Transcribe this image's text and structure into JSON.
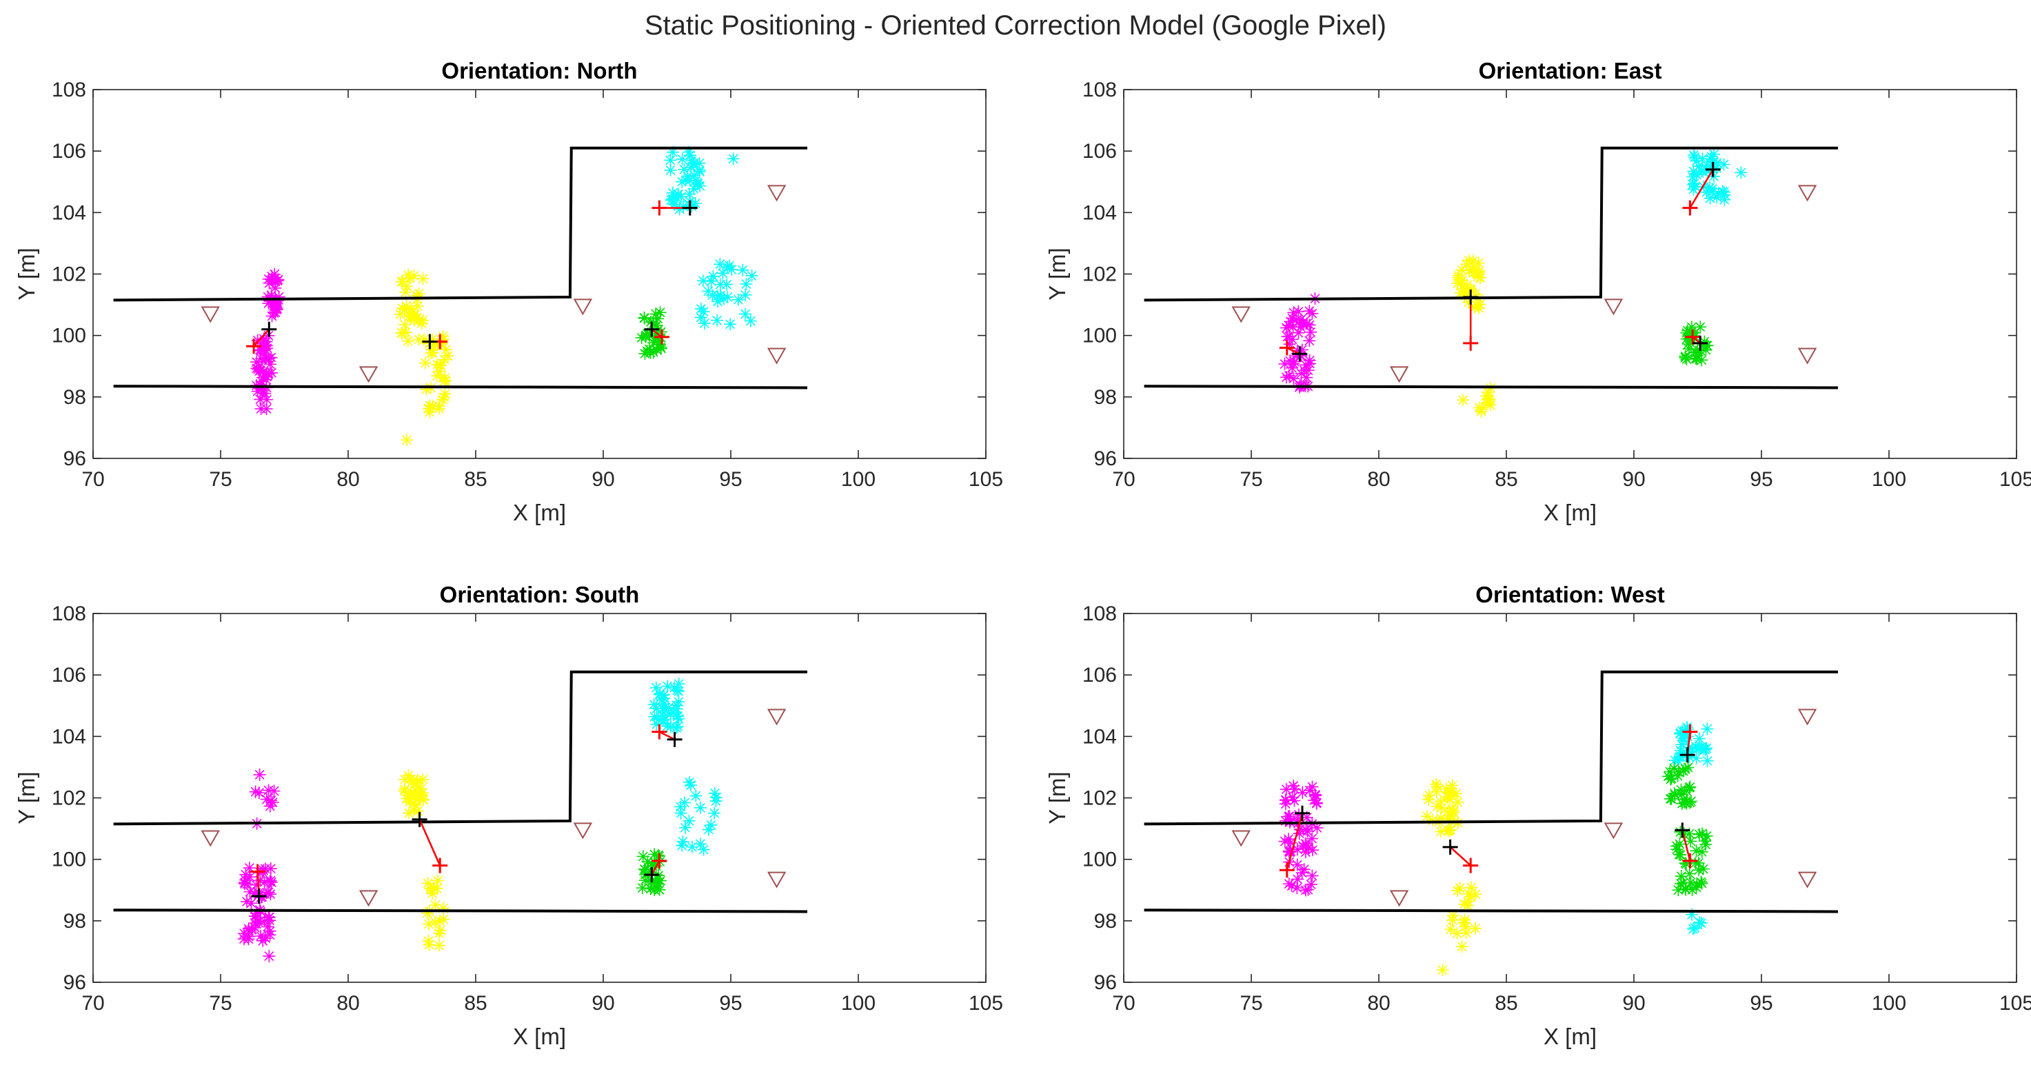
{
  "figure": {
    "title": "Static Positioning - Oriented Correction Model (Google Pixel)"
  },
  "colors": {
    "magenta": "#ff00ff",
    "yellow": "#ffff00",
    "cyan": "#00ffff",
    "green": "#00dd00",
    "estimate": "#000000",
    "truth": "#ff0000",
    "error_line": "#ff0000",
    "anchor": "#a05050",
    "wall": "#000000",
    "axis": "#262626"
  },
  "chart_data": [
    {
      "type": "scatter",
      "title": "Orientation: North",
      "xlabel": "X [m]",
      "ylabel": "Y [m]",
      "xlim": [
        70,
        105
      ],
      "ylim": [
        96,
        108
      ],
      "xticks": [
        70,
        75,
        80,
        85,
        90,
        95,
        100,
        105
      ],
      "yticks": [
        96,
        98,
        100,
        102,
        104,
        106,
        108
      ],
      "xtick_labels": [
        "70",
        "75",
        "80",
        "85",
        "90",
        "95",
        "100",
        "105"
      ],
      "ytick_labels": [
        "96",
        "98",
        "100",
        "102",
        "104",
        "106",
        "108"
      ],
      "walls": [
        [
          [
            70.8,
            101.15
          ],
          [
            88.7,
            101.25
          ],
          [
            88.75,
            106.1
          ],
          [
            98,
            106.1
          ]
        ],
        [
          [
            70.8,
            98.35
          ],
          [
            98,
            98.3
          ]
        ]
      ],
      "anchors": [
        [
          74.6,
          100.7
        ],
        [
          80.8,
          98.75
        ],
        [
          89.2,
          100.95
        ],
        [
          96.8,
          104.65
        ],
        [
          96.8,
          99.35
        ]
      ],
      "clusters": [
        {
          "color": "magenta",
          "x": [
            76.8,
            77.3
          ],
          "y": [
            100.6,
            102.0
          ],
          "n": 30
        },
        {
          "color": "magenta",
          "x": [
            76.4,
            77.0
          ],
          "y": [
            97.6,
            100.0
          ],
          "n": 45
        },
        {
          "color": "yellow",
          "x": [
            82.0,
            83.0
          ],
          "y": [
            99.8,
            102.0
          ],
          "n": 35
        },
        {
          "color": "yellow",
          "x": [
            83.0,
            84.0
          ],
          "y": [
            97.4,
            100.0
          ],
          "n": 35
        },
        {
          "color": "yellow",
          "x": [
            82.3,
            82.3
          ],
          "y": [
            96.6,
            96.6
          ],
          "n": 1
        },
        {
          "color": "cyan",
          "x": [
            92.6,
            93.8
          ],
          "y": [
            104.1,
            106.0
          ],
          "n": 40
        },
        {
          "color": "cyan",
          "x": [
            93.8,
            96.0
          ],
          "y": [
            100.3,
            102.4
          ],
          "n": 30
        },
        {
          "color": "cyan",
          "x": [
            95.1,
            95.1
          ],
          "y": [
            105.75,
            105.75
          ],
          "n": 1
        },
        {
          "color": "green",
          "x": [
            91.5,
            92.3
          ],
          "y": [
            99.4,
            100.8
          ],
          "n": 30
        }
      ],
      "pairs": [
        {
          "truth": [
            76.3,
            99.65
          ],
          "estimate": [
            76.9,
            100.2
          ]
        },
        {
          "truth": [
            83.6,
            99.8
          ],
          "estimate": [
            83.2,
            99.8
          ]
        },
        {
          "truth": [
            92.2,
            104.15
          ],
          "estimate": [
            93.4,
            104.15
          ]
        },
        {
          "truth": [
            92.3,
            99.95
          ],
          "estimate": [
            91.9,
            100.2
          ]
        }
      ]
    },
    {
      "type": "scatter",
      "title": "Orientation: East",
      "xlabel": "X [m]",
      "ylabel": "Y [m]",
      "xlim": [
        70,
        105
      ],
      "ylim": [
        96,
        108
      ],
      "xticks": [
        70,
        75,
        80,
        85,
        90,
        95,
        100,
        105
      ],
      "yticks": [
        96,
        98,
        100,
        102,
        104,
        106,
        108
      ],
      "xtick_labels": [
        "70",
        "75",
        "80",
        "85",
        "90",
        "95",
        "100",
        "105"
      ],
      "ytick_labels": [
        "96",
        "98",
        "100",
        "102",
        "104",
        "106",
        "108"
      ],
      "walls": [
        [
          [
            70.8,
            101.15
          ],
          [
            88.7,
            101.25
          ],
          [
            88.75,
            106.1
          ],
          [
            98,
            106.1
          ]
        ],
        [
          [
            70.8,
            98.35
          ],
          [
            98,
            98.3
          ]
        ]
      ],
      "anchors": [
        [
          74.6,
          100.7
        ],
        [
          80.8,
          98.75
        ],
        [
          89.2,
          100.95
        ],
        [
          96.8,
          104.65
        ],
        [
          96.8,
          99.35
        ]
      ],
      "clusters": [
        {
          "color": "magenta",
          "x": [
            76.3,
            77.4
          ],
          "y": [
            98.3,
            100.8
          ],
          "n": 50
        },
        {
          "color": "magenta",
          "x": [
            77.5,
            77.5
          ],
          "y": [
            101.2,
            101.2
          ],
          "n": 1
        },
        {
          "color": "yellow",
          "x": [
            83.0,
            84.0
          ],
          "y": [
            100.8,
            102.5
          ],
          "n": 35
        },
        {
          "color": "yellow",
          "x": [
            83.9,
            84.4
          ],
          "y": [
            97.5,
            98.6
          ],
          "n": 12
        },
        {
          "color": "yellow",
          "x": [
            83.3,
            83.3
          ],
          "y": [
            97.9,
            97.9
          ],
          "n": 1
        },
        {
          "color": "cyan",
          "x": [
            92.3,
            93.7
          ],
          "y": [
            104.4,
            106.0
          ],
          "n": 40
        },
        {
          "color": "cyan",
          "x": [
            94.2,
            94.2
          ],
          "y": [
            105.3,
            105.3
          ],
          "n": 1
        },
        {
          "color": "green",
          "x": [
            92.0,
            92.9
          ],
          "y": [
            99.2,
            100.4
          ],
          "n": 30
        }
      ],
      "pairs": [
        {
          "truth": [
            76.4,
            99.6
          ],
          "estimate": [
            76.9,
            99.4
          ]
        },
        {
          "truth": [
            83.6,
            99.75
          ],
          "estimate": [
            83.6,
            101.25
          ]
        },
        {
          "truth": [
            92.2,
            104.15
          ],
          "estimate": [
            93.1,
            105.4
          ]
        },
        {
          "truth": [
            92.3,
            99.95
          ],
          "estimate": [
            92.6,
            99.75
          ]
        }
      ]
    },
    {
      "type": "scatter",
      "title": "Orientation: South",
      "xlabel": "X [m]",
      "ylabel": "Y [m]",
      "xlim": [
        70,
        105
      ],
      "ylim": [
        96,
        108
      ],
      "xticks": [
        70,
        75,
        80,
        85,
        90,
        95,
        100,
        105
      ],
      "yticks": [
        96,
        98,
        100,
        102,
        104,
        106,
        108
      ],
      "xtick_labels": [
        "70",
        "75",
        "80",
        "85",
        "90",
        "95",
        "100",
        "105"
      ],
      "ytick_labels": [
        "96",
        "98",
        "100",
        "102",
        "104",
        "106",
        "108"
      ],
      "walls": [
        [
          [
            70.8,
            101.15
          ],
          [
            88.7,
            101.25
          ],
          [
            88.75,
            106.1
          ],
          [
            98,
            106.1
          ]
        ],
        [
          [
            70.8,
            98.35
          ],
          [
            98,
            98.3
          ]
        ]
      ],
      "anchors": [
        [
          74.6,
          100.7
        ],
        [
          80.8,
          98.75
        ],
        [
          89.2,
          100.95
        ],
        [
          96.8,
          104.65
        ],
        [
          96.8,
          99.35
        ]
      ],
      "clusters": [
        {
          "color": "magenta",
          "x": [
            75.9,
            77.0
          ],
          "y": [
            97.3,
            99.8
          ],
          "n": 55
        },
        {
          "color": "magenta",
          "x": [
            76.3,
            77.4
          ],
          "y": [
            101.1,
            102.8
          ],
          "n": 10
        },
        {
          "color": "magenta",
          "x": [
            76.9,
            76.9
          ],
          "y": [
            96.85,
            96.85
          ],
          "n": 1
        },
        {
          "color": "yellow",
          "x": [
            82.2,
            83.0
          ],
          "y": [
            101.5,
            102.8
          ],
          "n": 30
        },
        {
          "color": "yellow",
          "x": [
            83.1,
            83.8
          ],
          "y": [
            97.0,
            99.4
          ],
          "n": 20
        },
        {
          "color": "cyan",
          "x": [
            91.9,
            93.0
          ],
          "y": [
            104.2,
            105.8
          ],
          "n": 35
        },
        {
          "color": "cyan",
          "x": [
            93.0,
            94.5
          ],
          "y": [
            100.3,
            102.6
          ],
          "n": 20
        },
        {
          "color": "green",
          "x": [
            91.5,
            92.3
          ],
          "y": [
            99.0,
            100.2
          ],
          "n": 30
        }
      ],
      "pairs": [
        {
          "truth": [
            76.45,
            99.6
          ],
          "estimate": [
            76.5,
            98.8
          ]
        },
        {
          "truth": [
            83.6,
            99.8
          ],
          "estimate": [
            82.8,
            101.3
          ]
        },
        {
          "truth": [
            92.2,
            104.15
          ],
          "estimate": [
            92.8,
            103.9
          ]
        },
        {
          "truth": [
            92.2,
            99.95
          ],
          "estimate": [
            91.9,
            99.5
          ]
        }
      ]
    },
    {
      "type": "scatter",
      "title": "Orientation: West",
      "xlabel": "X [m]",
      "ylabel": "Y [m]",
      "xlim": [
        70,
        105
      ],
      "ylim": [
        96,
        108
      ],
      "xticks": [
        70,
        75,
        80,
        85,
        90,
        95,
        100,
        105
      ],
      "yticks": [
        96,
        98,
        100,
        102,
        104,
        106,
        108
      ],
      "xtick_labels": [
        "70",
        "75",
        "80",
        "85",
        "90",
        "95",
        "100",
        "105"
      ],
      "ytick_labels": [
        "96",
        "98",
        "100",
        "102",
        "104",
        "106",
        "108"
      ],
      "walls": [
        [
          [
            70.8,
            101.15
          ],
          [
            88.7,
            101.25
          ],
          [
            88.75,
            106.1
          ],
          [
            98,
            106.1
          ]
        ],
        [
          [
            70.8,
            98.35
          ],
          [
            98,
            98.3
          ]
        ]
      ],
      "anchors": [
        [
          74.6,
          100.7
        ],
        [
          80.8,
          98.75
        ],
        [
          89.2,
          100.95
        ],
        [
          96.8,
          104.65
        ],
        [
          96.8,
          99.35
        ]
      ],
      "clusters": [
        {
          "color": "magenta",
          "x": [
            76.3,
            77.6
          ],
          "y": [
            100.2,
            102.4
          ],
          "n": 45
        },
        {
          "color": "magenta",
          "x": [
            76.4,
            77.4
          ],
          "y": [
            98.9,
            100.5
          ],
          "n": 15
        },
        {
          "color": "yellow",
          "x": [
            81.8,
            83.1
          ],
          "y": [
            100.9,
            102.6
          ],
          "n": 35
        },
        {
          "color": "yellow",
          "x": [
            82.8,
            83.8
          ],
          "y": [
            97.0,
            99.3
          ],
          "n": 20
        },
        {
          "color": "yellow",
          "x": [
            82.5,
            82.5
          ],
          "y": [
            96.4,
            96.4
          ],
          "n": 1
        },
        {
          "color": "cyan",
          "x": [
            91.6,
            92.9
          ],
          "y": [
            103.2,
            104.4
          ],
          "n": 35
        },
        {
          "color": "cyan",
          "x": [
            92.2,
            92.7
          ],
          "y": [
            97.7,
            98.3
          ],
          "n": 5
        },
        {
          "color": "green",
          "x": [
            91.3,
            92.3
          ],
          "y": [
            101.8,
            103.0
          ],
          "n": 25
        },
        {
          "color": "green",
          "x": [
            91.6,
            92.9
          ],
          "y": [
            99.0,
            100.9
          ],
          "n": 35
        }
      ],
      "pairs": [
        {
          "truth": [
            76.4,
            99.65
          ],
          "estimate": [
            77.0,
            101.5
          ]
        },
        {
          "truth": [
            83.6,
            99.8
          ],
          "estimate": [
            82.8,
            100.4
          ]
        },
        {
          "truth": [
            92.2,
            104.15
          ],
          "estimate": [
            92.1,
            103.4
          ]
        },
        {
          "truth": [
            92.2,
            99.95
          ],
          "estimate": [
            91.9,
            100.95
          ]
        }
      ]
    }
  ]
}
